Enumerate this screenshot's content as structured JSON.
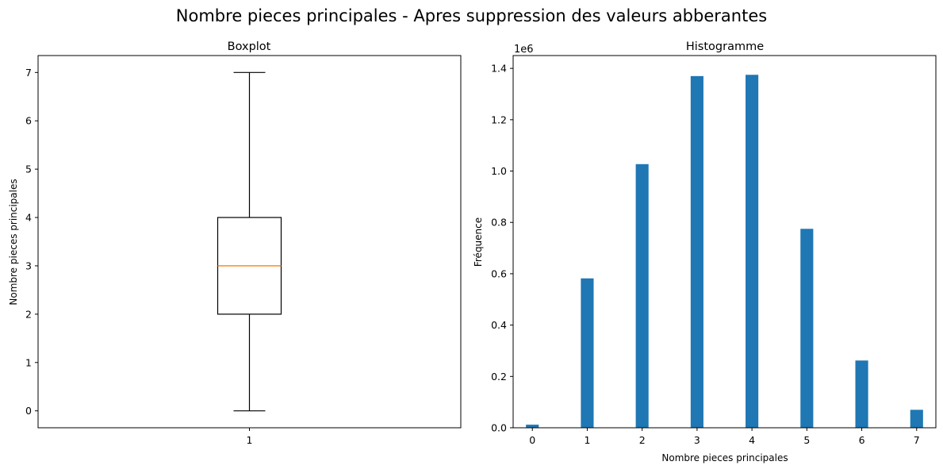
{
  "suptitle": "Nombre pieces principales - Apres suppression des valeurs abberantes",
  "chart_data": [
    {
      "type": "box",
      "title": "Boxplot",
      "xlabel": "",
      "ylabel": "Nombre pieces principales",
      "x_tick_labels": [
        "1"
      ],
      "yticks": [
        0,
        1,
        2,
        3,
        4,
        5,
        6,
        7
      ],
      "ylim": [
        -0.35,
        7.35
      ],
      "box": {
        "whisker_low": 0,
        "q1": 2,
        "median": 3,
        "q3": 4,
        "whisker_high": 7
      },
      "colors": {
        "box": "#000000",
        "median": "#ff7f0e"
      }
    },
    {
      "type": "bar",
      "title": "Histogramme",
      "xlabel": "Nombre pieces principales",
      "ylabel": "Fréquence",
      "offset_label": "1e6",
      "xticks": [
        0,
        1,
        2,
        3,
        4,
        5,
        6,
        7
      ],
      "yticks": [
        0.0,
        0.2,
        0.4,
        0.6,
        0.8,
        1.0,
        1.2,
        1.4
      ],
      "ytick_labels": [
        "0.0",
        "0.2",
        "0.4",
        "0.6",
        "0.8",
        "1.0",
        "1.2",
        "1.4"
      ],
      "xlim": [
        -0.35,
        7.35
      ],
      "ylim": [
        0,
        1.45
      ],
      "bin_width": 0.233,
      "bars": [
        {
          "x": 0,
          "value": 0.012
        },
        {
          "x": 1,
          "value": 0.582
        },
        {
          "x": 2,
          "value": 1.027
        },
        {
          "x": 3,
          "value": 1.37
        },
        {
          "x": 4,
          "value": 1.375
        },
        {
          "x": 5,
          "value": 0.775
        },
        {
          "x": 6,
          "value": 0.262
        },
        {
          "x": 7,
          "value": 0.07
        }
      ],
      "colors": {
        "bar": "#1f77b4"
      }
    }
  ]
}
